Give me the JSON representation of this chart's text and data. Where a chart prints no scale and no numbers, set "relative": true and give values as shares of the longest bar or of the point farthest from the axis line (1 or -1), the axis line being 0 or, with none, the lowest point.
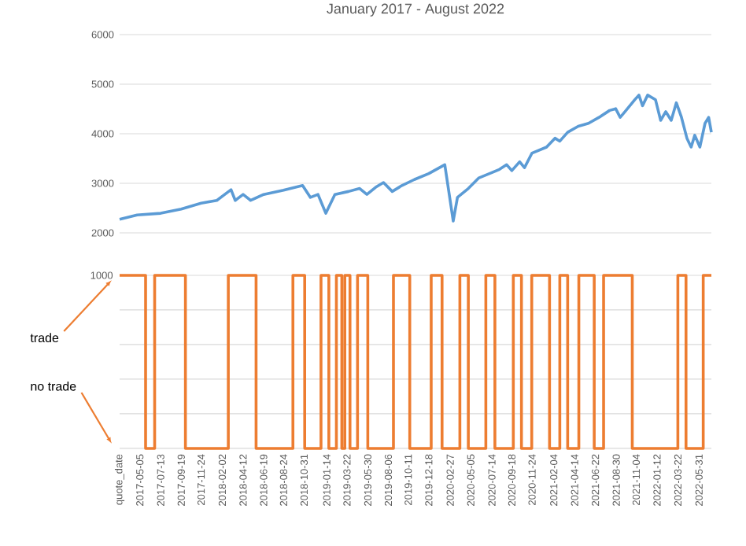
{
  "chart_data": [
    {
      "type": "line",
      "title": "January 2017 - August 2022",
      "color": "#5b9bd5",
      "grid": "y",
      "tick_labels": "y",
      "xlim": [
        "2017-02-27",
        "2022-07-11"
      ],
      "ylim": [
        2000,
        6000
      ],
      "yticks": [
        2000,
        3000,
        4000,
        5000,
        6000
      ],
      "x": [
        "2017-02-27",
        "2017-04-26",
        "2017-07-13",
        "2017-09-19",
        "2017-11-24",
        "2018-01-15",
        "2018-03-03",
        "2018-03-17",
        "2018-04-12",
        "2018-05-07",
        "2018-06-19",
        "2018-08-24",
        "2018-10-26",
        "2018-11-21",
        "2018-12-16",
        "2019-01-11",
        "2019-02-10",
        "2019-03-27",
        "2019-05-03",
        "2019-05-27",
        "2019-06-25",
        "2019-07-21",
        "2019-08-19",
        "2019-09-20",
        "2019-10-31",
        "2019-12-18",
        "2020-02-09",
        "2020-03-08",
        "2020-03-22",
        "2020-04-27",
        "2020-06-01",
        "2020-07-06",
        "2020-08-08",
        "2020-09-01",
        "2020-09-18",
        "2020-10-14",
        "2020-10-30",
        "2020-11-24",
        "2021-01-11",
        "2021-02-08",
        "2021-02-24",
        "2021-03-22",
        "2021-04-26",
        "2021-05-30",
        "2021-07-04",
        "2021-08-08",
        "2021-08-28",
        "2021-09-12",
        "2021-09-28",
        "2021-10-30",
        "2021-11-13",
        "2021-11-25",
        "2021-12-12",
        "2022-01-07",
        "2022-01-24",
        "2022-02-10",
        "2022-02-28",
        "2022-03-17",
        "2022-04-03",
        "2022-04-21",
        "2022-05-05",
        "2022-05-17",
        "2022-06-03",
        "2022-06-20",
        "2022-07-02",
        "2022-07-11"
      ],
      "values": [
        2275,
        2360,
        2395,
        2480,
        2600,
        2655,
        2870,
        2655,
        2775,
        2655,
        2775,
        2860,
        2955,
        2715,
        2775,
        2395,
        2775,
        2835,
        2895,
        2775,
        2920,
        3015,
        2835,
        2955,
        3075,
        3195,
        3375,
        2240,
        2715,
        2895,
        3110,
        3195,
        3280,
        3375,
        3255,
        3435,
        3315,
        3610,
        3730,
        3910,
        3850,
        4030,
        4150,
        4210,
        4330,
        4470,
        4505,
        4330,
        4445,
        4685,
        4780,
        4565,
        4780,
        4685,
        4270,
        4445,
        4270,
        4625,
        4330,
        3910,
        3730,
        3970,
        3730,
        4210,
        4330,
        4030
      ]
    },
    {
      "type": "step",
      "color": "#ed7d31",
      "grid": "y",
      "relative": true,
      "tick_labels": "x",
      "xlim": [
        "2017-02-27",
        "2022-07-11"
      ],
      "xticks": [
        {
          "value": "2017-02-27",
          "label": "quote_date"
        },
        "2017-05-05",
        "2017-07-13",
        "2017-09-19",
        "2017-11-24",
        "2018-02-02",
        "2018-04-12",
        "2018-06-19",
        "2018-08-24",
        "2018-10-31",
        "2019-01-14",
        "2019-03-22",
        "2019-05-30",
        "2019-08-06",
        "2019-10-11",
        "2019-12-18",
        "2020-02-27",
        "2020-05-05",
        "2020-07-14",
        "2020-09-18",
        "2020-11-24",
        "2021-02-04",
        "2021-04-14",
        "2021-06-22",
        "2021-08-30",
        "2021-11-04",
        "2022-01-12",
        "2022-03-22",
        "2022-05-31"
      ],
      "x": [
        "2017-02-27",
        "2017-05-24",
        "2017-06-23",
        "2017-10-03",
        "2018-02-22",
        "2018-05-25",
        "2018-09-24",
        "2018-11-02",
        "2018-12-26",
        "2019-01-21",
        "2019-02-15",
        "2019-03-05",
        "2019-03-15",
        "2019-04-01",
        "2019-04-26",
        "2019-05-30",
        "2019-08-23",
        "2019-10-16",
        "2019-12-26",
        "2020-01-31",
        "2020-03-30",
        "2020-04-27",
        "2020-06-24",
        "2020-07-24",
        "2020-09-23",
        "2020-10-20",
        "2020-11-23",
        "2021-01-21",
        "2021-02-24",
        "2021-03-22",
        "2021-04-28",
        "2021-06-18",
        "2021-07-19",
        "2021-10-22",
        "2022-03-22",
        "2022-04-18",
        "2022-06-14",
        "2022-07-11"
      ],
      "values": [
        1,
        0,
        1,
        0,
        1,
        0,
        1,
        0,
        1,
        0,
        1,
        0,
        1,
        0,
        1,
        0,
        1,
        0,
        1,
        0,
        1,
        0,
        1,
        0,
        1,
        0,
        1,
        0,
        1,
        0,
        1,
        0,
        1,
        0,
        1,
        0,
        1,
        1
      ],
      "annotations": [
        "1000",
        "trade",
        "no trade"
      ]
    }
  ]
}
